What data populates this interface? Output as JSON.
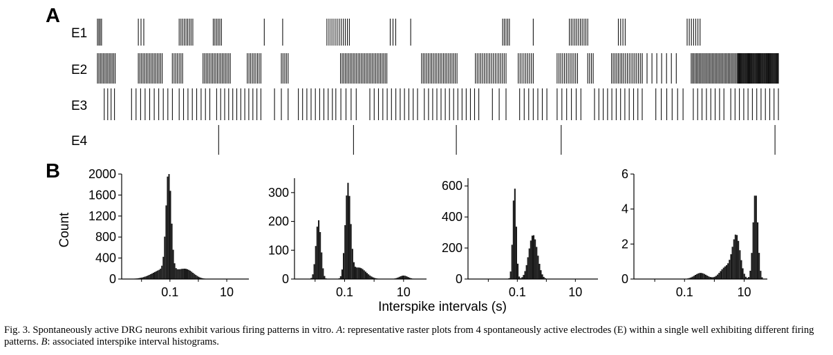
{
  "panel_a_label": "A",
  "panel_b_label": "B",
  "y_label": "Count",
  "x_label": "Interspike intervals (s)",
  "caption": {
    "lead": "Fig. 3. Spontaneously active DRG neurons exhibit various firing patterns in vitro. ",
    "a_letter": "A",
    "a_text": ": representative raster plots from 4 spontaneously active electrodes (E) within a single well exhibiting different firing patterns. ",
    "b_letter": "B",
    "b_text": ": associated interspike interval histograms."
  },
  "chart_data": [
    {
      "type": "raster",
      "rows": [
        {
          "label": "E1",
          "bursts": [
            [
              0.0,
              0.006,
              4
            ],
            [
              0.06,
              0.068,
              3
            ],
            [
              0.12,
              0.14,
              9
            ],
            [
              0.17,
              0.182,
              6
            ],
            [
              0.245,
              0.245,
              1
            ],
            [
              0.272,
              0.272,
              1
            ],
            [
              0.337,
              0.37,
              12
            ],
            [
              0.43,
              0.438,
              3
            ],
            [
              0.46,
              0.46,
              1
            ],
            [
              0.595,
              0.605,
              5
            ],
            [
              0.64,
              0.64,
              1
            ],
            [
              0.693,
              0.72,
              11
            ],
            [
              0.765,
              0.775,
              4
            ],
            [
              0.866,
              0.885,
              7
            ]
          ]
        },
        {
          "label": "E2",
          "bursts": [
            [
              0.0,
              0.026,
              13
            ],
            [
              0.06,
              0.095,
              16
            ],
            [
              0.11,
              0.125,
              7
            ],
            [
              0.155,
              0.195,
              18
            ],
            [
              0.22,
              0.24,
              9
            ],
            [
              0.27,
              0.28,
              5
            ],
            [
              0.357,
              0.425,
              30
            ],
            [
              0.476,
              0.528,
              22
            ],
            [
              0.555,
              0.6,
              18
            ],
            [
              0.618,
              0.64,
              9
            ],
            [
              0.675,
              0.705,
              12
            ],
            [
              0.72,
              0.728,
              4
            ],
            [
              0.755,
              0.77,
              7
            ],
            [
              0.77,
              0.8,
              12
            ],
            [
              0.8,
              0.85,
              8
            ],
            [
              0.872,
              0.94,
              36
            ],
            [
              0.94,
              1.0,
              58
            ]
          ]
        },
        {
          "label": "E3",
          "bursts": [
            [
              0.01,
              0.025,
              4
            ],
            [
              0.05,
              0.11,
              10
            ],
            [
              0.12,
              0.165,
              8
            ],
            [
              0.175,
              0.24,
              12
            ],
            [
              0.26,
              0.28,
              3
            ],
            [
              0.295,
              0.345,
              9
            ],
            [
              0.35,
              0.38,
              5
            ],
            [
              0.4,
              0.47,
              12
            ],
            [
              0.48,
              0.56,
              14
            ],
            [
              0.58,
              0.6,
              3
            ],
            [
              0.62,
              0.66,
              7
            ],
            [
              0.675,
              0.71,
              6
            ],
            [
              0.73,
              0.8,
              12
            ],
            [
              0.82,
              0.86,
              6
            ],
            [
              0.875,
              0.92,
              8
            ],
            [
              0.93,
              1.0,
              12
            ]
          ]
        },
        {
          "label": "E4",
          "bursts": [
            [
              0.178,
              0.178,
              1
            ],
            [
              0.376,
              0.376,
              1
            ],
            [
              0.527,
              0.527,
              1
            ],
            [
              0.681,
              0.681,
              1
            ],
            [
              0.995,
              0.995,
              1
            ]
          ]
        }
      ],
      "x_range": [
        0,
        1
      ]
    },
    {
      "type": "bar",
      "xscale": "log",
      "xlim": [
        0.002,
        60
      ],
      "ylim": [
        0,
        2000
      ],
      "yticks": [
        0,
        400,
        800,
        1200,
        1600,
        2000
      ],
      "xticks": [
        "0.1",
        "10"
      ],
      "ylabel": "Count",
      "peaks": [
        {
          "center": 0.09,
          "height": 1900,
          "width": 0.09
        },
        {
          "center": 0.07,
          "height": 200,
          "width": 0.42
        },
        {
          "center": 0.4,
          "height": 150,
          "width": 0.25
        }
      ]
    },
    {
      "type": "bar",
      "xscale": "log",
      "xlim": [
        0.002,
        60
      ],
      "ylim": [
        0,
        350
      ],
      "yticks": [
        0,
        100,
        200,
        300
      ],
      "xticks": [
        "0.1",
        "10"
      ],
      "peaks": [
        {
          "center": 0.013,
          "height": 205,
          "width": 0.085
        },
        {
          "center": 0.13,
          "height": 320,
          "width": 0.09
        },
        {
          "center": 0.3,
          "height": 40,
          "width": 0.25
        },
        {
          "center": 10,
          "height": 12,
          "width": 0.15
        }
      ]
    },
    {
      "type": "bar",
      "xscale": "log",
      "xlim": [
        0.002,
        60
      ],
      "ylim": [
        0,
        650
      ],
      "yticks": [
        0,
        200,
        400,
        600
      ],
      "xticks": [
        "0.1",
        "10"
      ],
      "peaks": [
        {
          "center": 0.08,
          "height": 600,
          "width": 0.06
        },
        {
          "center": 0.35,
          "height": 285,
          "width": 0.15
        }
      ]
    },
    {
      "type": "bar",
      "xscale": "log",
      "xlim": [
        0.002,
        60
      ],
      "ylim": [
        0,
        6
      ],
      "yticks": [
        0,
        2,
        4,
        6
      ],
      "xticks": [
        "0.1",
        "10"
      ],
      "peaks": [
        {
          "center": 24,
          "height": 5.0,
          "width": 0.08
        },
        {
          "center": 5.5,
          "height": 2.4,
          "width": 0.13
        },
        {
          "center": 0.35,
          "height": 0.35,
          "width": 0.2
        },
        {
          "center": 2.5,
          "height": 0.7,
          "width": 0.2
        }
      ]
    }
  ]
}
